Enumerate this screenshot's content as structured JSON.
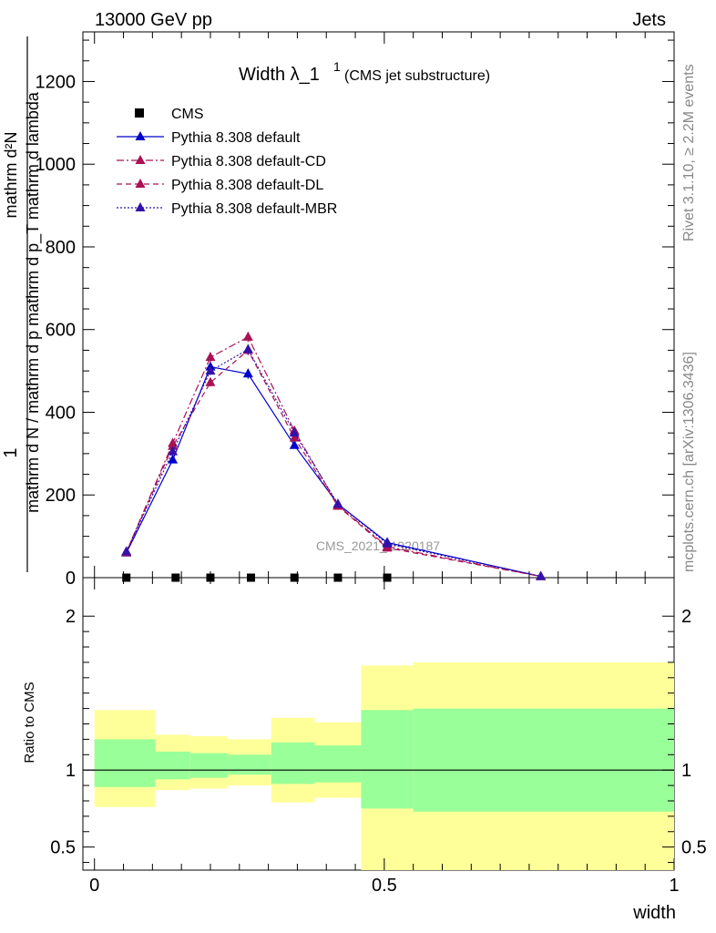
{
  "header": {
    "left": "13000 GeV pp",
    "right": "Jets"
  },
  "side_labels": {
    "rivet": "Rivet 3.1.10, ≥ 2.2M events",
    "mcplots": "mcplots.cern.ch [arXiv:1306.3436]"
  },
  "watermark": "CMS_2021_I1920187",
  "chart_data": [
    {
      "type": "line",
      "title_main": "Width λ_1",
      "title_sup": "1",
      "title_sub": "(CMS jet substructure)",
      "ylabel_frac_num": "1",
      "ylabel_frac_den": "mathrm d N / mathrm d p mathrm d p_T mathrm d lambda",
      "ylabel_numerator": "mathrm d²N",
      "ylim": [
        0,
        1320
      ],
      "yticks": [
        0,
        200,
        400,
        600,
        800,
        1000,
        1200
      ],
      "ytick_labels": [
        "0",
        "200",
        "400",
        "600",
        "800",
        "1000",
        "1200"
      ],
      "xlim": [
        -0.02,
        1.0
      ],
      "series": [
        {
          "name": "CMS",
          "style": "data",
          "color": "#000000",
          "x": [
            0.055,
            0.14,
            0.2,
            0.27,
            0.345,
            0.42,
            0.505
          ],
          "values": [
            0,
            0,
            0,
            0,
            0,
            0,
            0
          ]
        },
        {
          "name": "Pythia 8.308 default",
          "style": "solid",
          "color": "#0000cc",
          "x": [
            0.055,
            0.135,
            0.2,
            0.265,
            0.345,
            0.42,
            0.505,
            0.77
          ],
          "values": [
            60,
            285,
            510,
            493,
            320,
            178,
            85,
            3
          ],
          "errors": [
            4,
            8,
            10,
            12,
            8,
            5,
            3,
            0
          ]
        },
        {
          "name": "Pythia 8.308 default-CD",
          "style": "dashdot",
          "color": "#aa1155",
          "x": [
            0.055,
            0.135,
            0.2,
            0.265,
            0.345,
            0.42,
            0.505,
            0.77
          ],
          "values": [
            62,
            325,
            533,
            582,
            355,
            175,
            75,
            3
          ],
          "errors": [
            4,
            10,
            12,
            12,
            8,
            5,
            3,
            0
          ]
        },
        {
          "name": "Pythia 8.308 default-DL",
          "style": "dashed",
          "color": "#aa1155",
          "x": [
            0.055,
            0.135,
            0.2,
            0.265,
            0.345,
            0.42,
            0.505,
            0.77
          ],
          "values": [
            61,
            318,
            472,
            550,
            338,
            173,
            72,
            3
          ],
          "errors": [
            4,
            10,
            10,
            12,
            8,
            5,
            3,
            0
          ]
        },
        {
          "name": "Pythia 8.308 default-MBR",
          "style": "dotted",
          "color": "#3311aa",
          "x": [
            0.055,
            0.135,
            0.2,
            0.265,
            0.345,
            0.42,
            0.505,
            0.77
          ],
          "values": [
            63,
            305,
            500,
            552,
            350,
            178,
            82,
            3
          ],
          "errors": [
            4,
            9,
            10,
            12,
            8,
            5,
            3,
            0
          ]
        }
      ]
    },
    {
      "type": "area",
      "ylabel": "Ratio to CMS",
      "xlabel": "width",
      "xlim": [
        -0.02,
        1.0
      ],
      "xticks": [
        0,
        0.5,
        1
      ],
      "xtick_labels": [
        "0",
        "0.5",
        "1"
      ],
      "ylim": [
        0.35,
        2.25
      ],
      "yticks": [
        0.5,
        1,
        2
      ],
      "ytick_labels": [
        "0.5",
        "1",
        "2"
      ],
      "reference": 1,
      "bins": [
        {
          "lo": 0.0,
          "hi": 0.105,
          "stat_lo": 0.89,
          "stat_hi": 1.2,
          "tot_lo": 0.76,
          "tot_hi": 1.39
        },
        {
          "lo": 0.105,
          "hi": 0.165,
          "stat_lo": 0.94,
          "stat_hi": 1.12,
          "tot_lo": 0.87,
          "tot_hi": 1.23
        },
        {
          "lo": 0.165,
          "hi": 0.23,
          "stat_lo": 0.95,
          "stat_hi": 1.11,
          "tot_lo": 0.88,
          "tot_hi": 1.22
        },
        {
          "lo": 0.23,
          "hi": 0.305,
          "stat_lo": 0.97,
          "stat_hi": 1.1,
          "tot_lo": 0.9,
          "tot_hi": 1.2
        },
        {
          "lo": 0.305,
          "hi": 0.38,
          "stat_lo": 0.91,
          "stat_hi": 1.18,
          "tot_lo": 0.79,
          "tot_hi": 1.34
        },
        {
          "lo": 0.38,
          "hi": 0.46,
          "stat_lo": 0.92,
          "stat_hi": 1.16,
          "tot_lo": 0.82,
          "tot_hi": 1.31
        },
        {
          "lo": 0.46,
          "hi": 0.55,
          "stat_lo": 0.75,
          "stat_hi": 1.39,
          "tot_lo": 0.35,
          "tot_hi": 1.68
        },
        {
          "lo": 0.55,
          "hi": 1.0,
          "stat_lo": 0.73,
          "stat_hi": 1.4,
          "tot_lo": 0.35,
          "tot_hi": 1.7
        }
      ],
      "band_colors": {
        "total": "#ffff99",
        "stat": "#99ff99"
      }
    }
  ]
}
